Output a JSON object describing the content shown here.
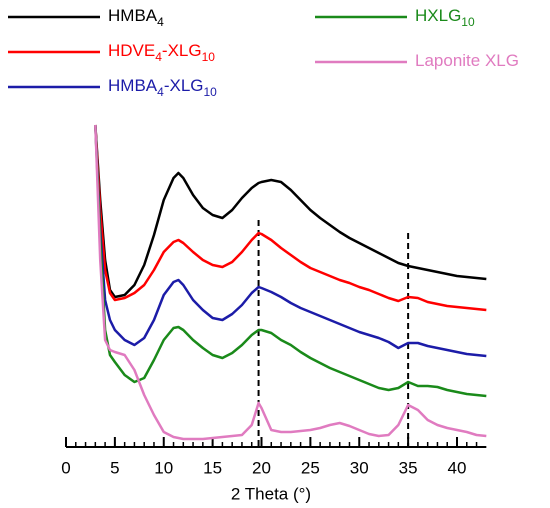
{
  "chart_data": {
    "type": "line",
    "x_label": "2 Theta (°)",
    "x": [
      3,
      3.5,
      4,
      4.5,
      5,
      6,
      7,
      8,
      9,
      10,
      11,
      11.5,
      12,
      13,
      14,
      15,
      16,
      17,
      18,
      19,
      19.7,
      20,
      21,
      22,
      23,
      24,
      25,
      26,
      27,
      28,
      29,
      30,
      31,
      32,
      33,
      34,
      35,
      36,
      37,
      38,
      39,
      40,
      41,
      42,
      43
    ],
    "series": [
      {
        "name": "HMBA4",
        "color": "#000000",
        "values": [
          320,
          245,
          185,
          155,
          148,
          150,
          160,
          180,
          210,
          245,
          267,
          272,
          267,
          250,
          237,
          230,
          227,
          235,
          247,
          257,
          262,
          263,
          265,
          263,
          255,
          245,
          235,
          227,
          220,
          213,
          207,
          202,
          197,
          192,
          187,
          182,
          179,
          177,
          175,
          173,
          171,
          169,
          168,
          167,
          166
        ]
      },
      {
        "name": "HDVE4-XLG10",
        "color": "#ff0000",
        "values": [
          320,
          235,
          175,
          152,
          145,
          147,
          152,
          160,
          175,
          193,
          203,
          205,
          202,
          193,
          185,
          180,
          178,
          183,
          193,
          205,
          212,
          211,
          205,
          197,
          190,
          183,
          177,
          173,
          169,
          165,
          162,
          158,
          155,
          151,
          147,
          144,
          148,
          147,
          143,
          141,
          139,
          138,
          137,
          136,
          135
        ]
      },
      {
        "name": "HMBA4-XLG10",
        "color": "#1c1ca8",
        "values": [
          320,
          215,
          145,
          125,
          115,
          105,
          100,
          107,
          125,
          150,
          163,
          165,
          160,
          145,
          135,
          127,
          125,
          131,
          140,
          152,
          158,
          157,
          153,
          148,
          142,
          137,
          133,
          129,
          125,
          121,
          117,
          113,
          110,
          107,
          103,
          97,
          102,
          102,
          99,
          97,
          95,
          93,
          91,
          90,
          89
        ]
      },
      {
        "name": "HXLG10",
        "color": "#1a8a1a",
        "values": [
          320,
          205,
          115,
          90,
          83,
          70,
          63,
          67,
          85,
          105,
          117,
          118,
          115,
          105,
          97,
          90,
          87,
          92,
          100,
          110,
          115,
          115,
          112,
          105,
          100,
          93,
          87,
          82,
          77,
          73,
          69,
          65,
          61,
          57,
          55,
          57,
          63,
          59,
          59,
          58,
          55,
          53,
          51,
          50,
          49
        ]
      },
      {
        "name": "Laponite XLG",
        "color": "#e07bc0",
        "values": [
          320,
          185,
          105,
          95,
          93,
          90,
          75,
          50,
          30,
          13,
          8,
          7,
          6,
          6,
          6,
          7,
          8,
          9,
          10,
          20,
          42,
          37,
          15,
          13,
          13,
          14,
          15,
          17,
          20,
          22,
          19,
          15,
          11,
          9,
          10,
          20,
          40,
          35,
          25,
          20,
          17,
          15,
          13,
          10,
          9
        ]
      }
    ],
    "xlim": [
      0,
      43
    ],
    "ylim": [
      0,
      325
    ],
    "xticks": [
      0,
      5,
      10,
      15,
      20,
      25,
      30,
      35,
      40
    ],
    "xminor_ticks": [
      0,
      1,
      2,
      3,
      4,
      5,
      6,
      7,
      8,
      9,
      10,
      11,
      12,
      13,
      14,
      15,
      16,
      17,
      18,
      19,
      20,
      21,
      22,
      23,
      24,
      25,
      26,
      27,
      28,
      29,
      30,
      31,
      32,
      33,
      34,
      35,
      36,
      37,
      38,
      39,
      40,
      41,
      42
    ],
    "vlines": [
      {
        "x": 19.7,
        "top": 225
      },
      {
        "x": 35,
        "top": 212
      }
    ]
  }
}
